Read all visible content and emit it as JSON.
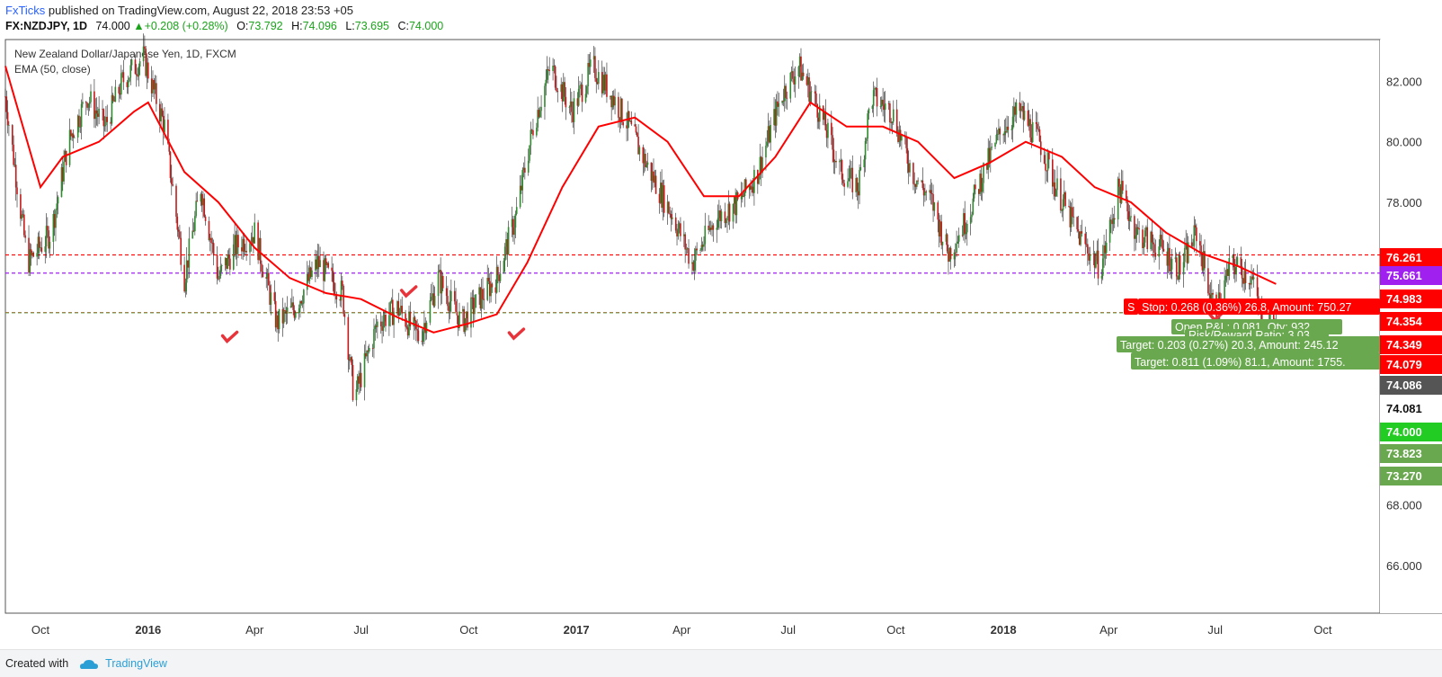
{
  "header": {
    "author": "FxTicks",
    "published": "published on TradingView.com, August 22, 2018 23:53 +05",
    "symbol": "FX:NZDJPY, 1D",
    "last": "74.000",
    "change": "+0.208 (+0.28%)",
    "open_label": "O:",
    "open": "73.792",
    "high_label": "H:",
    "high": "74.096",
    "low_label": "L:",
    "low": "73.695",
    "close_label": "C:",
    "close": "74.000"
  },
  "legend": {
    "instrument": "New Zealand Dollar/Japanese Yen, 1D, FXCM",
    "indicator": "EMA (50, close)"
  },
  "footer": {
    "created_with": "Created with",
    "brand": "TradingView"
  },
  "colors": {
    "up": "#2e8b2e",
    "down": "#c41a1a",
    "ema": "#ff0000",
    "purple": "#a020f0",
    "green_box": "#6aa84f",
    "red_box": "#ff0000"
  },
  "chart_data": {
    "type": "candlestick",
    "title": "New Zealand Dollar/Japanese Yen, 1D, FXCM",
    "xlabel": "",
    "ylabel": "",
    "y_ticks": [
      82.0,
      80.0,
      78.0,
      68.0,
      66.0
    ],
    "x_ticks": [
      {
        "label": "Oct",
        "date": "2015-10-01",
        "bold": false
      },
      {
        "label": "2016",
        "date": "2016-01-01",
        "bold": true
      },
      {
        "label": "Apr",
        "date": "2016-04-01",
        "bold": false
      },
      {
        "label": "Jul",
        "date": "2016-07-01",
        "bold": false
      },
      {
        "label": "Oct",
        "date": "2016-10-01",
        "bold": false
      },
      {
        "label": "2017",
        "date": "2017-01-01",
        "bold": true
      },
      {
        "label": "Apr",
        "date": "2017-04-01",
        "bold": false
      },
      {
        "label": "Jul",
        "date": "2017-07-01",
        "bold": false
      },
      {
        "label": "Oct",
        "date": "2017-10-01",
        "bold": false
      },
      {
        "label": "2018",
        "date": "2018-01-01",
        "bold": true
      },
      {
        "label": "Apr",
        "date": "2018-04-01",
        "bold": false
      },
      {
        "label": "Jul",
        "date": "2018-07-01",
        "bold": false
      },
      {
        "label": "Oct",
        "date": "2018-10-01",
        "bold": false
      }
    ],
    "price_series": [
      [
        "2015-09-01",
        81.5
      ],
      [
        "2015-09-20",
        76.0
      ],
      [
        "2015-10-10",
        77.0
      ],
      [
        "2015-10-25",
        80.0
      ],
      [
        "2015-11-10",
        81.5
      ],
      [
        "2015-11-25",
        80.5
      ],
      [
        "2015-12-10",
        82.0
      ],
      [
        "2015-12-28",
        82.8
      ],
      [
        "2016-01-15",
        80.5
      ],
      [
        "2016-02-01",
        75.5
      ],
      [
        "2016-02-15",
        78.5
      ],
      [
        "2016-03-01",
        75.5
      ],
      [
        "2016-03-15",
        76.5
      ],
      [
        "2016-04-01",
        77.0
      ],
      [
        "2016-04-20",
        74.0
      ],
      [
        "2016-05-05",
        74.5
      ],
      [
        "2016-05-25",
        76.0
      ],
      [
        "2016-06-15",
        75.0
      ],
      [
        "2016-06-25",
        71.5
      ],
      [
        "2016-07-15",
        74.0
      ],
      [
        "2016-08-01",
        74.5
      ],
      [
        "2016-08-20",
        73.5
      ],
      [
        "2016-09-05",
        75.5
      ],
      [
        "2016-09-25",
        74.0
      ],
      [
        "2016-10-10",
        74.8
      ],
      [
        "2016-10-25",
        75.5
      ],
      [
        "2016-11-10",
        77.5
      ],
      [
        "2016-11-25",
        80.5
      ],
      [
        "2016-12-10",
        82.5
      ],
      [
        "2016-12-28",
        81.0
      ],
      [
        "2017-01-15",
        82.5
      ],
      [
        "2017-02-01",
        81.5
      ],
      [
        "2017-02-15",
        80.5
      ],
      [
        "2017-03-05",
        79.0
      ],
      [
        "2017-03-25",
        77.5
      ],
      [
        "2017-04-10",
        76.0
      ],
      [
        "2017-05-01",
        77.5
      ],
      [
        "2017-05-20",
        78.0
      ],
      [
        "2017-06-05",
        79.0
      ],
      [
        "2017-06-25",
        81.5
      ],
      [
        "2017-07-10",
        82.5
      ],
      [
        "2017-07-28",
        81.0
      ],
      [
        "2017-08-15",
        79.0
      ],
      [
        "2017-08-30",
        78.5
      ],
      [
        "2017-09-10",
        81.5
      ],
      [
        "2017-09-28",
        81.0
      ],
      [
        "2017-10-15",
        79.0
      ],
      [
        "2017-11-01",
        78.0
      ],
      [
        "2017-11-15",
        76.3
      ],
      [
        "2017-12-01",
        77.5
      ],
      [
        "2017-12-15",
        79.0
      ],
      [
        "2018-01-01",
        80.5
      ],
      [
        "2018-01-15",
        81.0
      ],
      [
        "2018-02-01",
        80.0
      ],
      [
        "2018-02-15",
        78.5
      ],
      [
        "2018-03-05",
        77.0
      ],
      [
        "2018-03-25",
        75.8
      ],
      [
        "2018-04-10",
        78.5
      ],
      [
        "2018-04-25",
        77.0
      ],
      [
        "2018-05-15",
        76.5
      ],
      [
        "2018-06-01",
        75.8
      ],
      [
        "2018-06-15",
        77.0
      ],
      [
        "2018-07-01",
        74.3
      ],
      [
        "2018-07-15",
        76.0
      ],
      [
        "2018-08-01",
        75.5
      ],
      [
        "2018-08-12",
        73.8
      ],
      [
        "2018-08-22",
        74.0
      ]
    ],
    "ema_50": [
      [
        "2015-09-01",
        82.5
      ],
      [
        "2015-10-01",
        78.5
      ],
      [
        "2015-10-20",
        79.5
      ],
      [
        "2015-11-20",
        80.0
      ],
      [
        "2015-12-20",
        81.0
      ],
      [
        "2016-01-01",
        81.3
      ],
      [
        "2016-02-01",
        79.0
      ],
      [
        "2016-03-01",
        78.0
      ],
      [
        "2016-04-01",
        76.5
      ],
      [
        "2016-05-01",
        75.5
      ],
      [
        "2016-06-01",
        75.0
      ],
      [
        "2016-07-01",
        74.8
      ],
      [
        "2016-08-01",
        74.2
      ],
      [
        "2016-09-01",
        73.7
      ],
      [
        "2016-10-01",
        74.0
      ],
      [
        "2016-10-25",
        74.3
      ],
      [
        "2016-11-20",
        76.0
      ],
      [
        "2016-12-20",
        78.5
      ],
      [
        "2017-01-20",
        80.5
      ],
      [
        "2017-02-20",
        80.8
      ],
      [
        "2017-03-20",
        80.0
      ],
      [
        "2017-04-20",
        78.2
      ],
      [
        "2017-05-20",
        78.2
      ],
      [
        "2017-06-20",
        79.5
      ],
      [
        "2017-07-20",
        81.3
      ],
      [
        "2017-08-20",
        80.5
      ],
      [
        "2017-09-20",
        80.5
      ],
      [
        "2017-10-20",
        80.0
      ],
      [
        "2017-11-20",
        78.8
      ],
      [
        "2017-12-20",
        79.3
      ],
      [
        "2018-01-20",
        80.0
      ],
      [
        "2018-02-20",
        79.5
      ],
      [
        "2018-03-20",
        78.5
      ],
      [
        "2018-04-20",
        78.0
      ],
      [
        "2018-05-20",
        77.0
      ],
      [
        "2018-06-20",
        76.3
      ],
      [
        "2018-07-20",
        75.9
      ],
      [
        "2018-08-22",
        75.3
      ]
    ],
    "horizontal_lines": [
      {
        "value": 76.261,
        "color": "#ff0000",
        "style": "dashed"
      },
      {
        "value": 75.661,
        "color": "#a020f0",
        "style": "dashed"
      },
      {
        "value": 74.354,
        "color": "#ff0000",
        "style": "dashed"
      },
      {
        "value": 74.349,
        "color": "#6aa84f",
        "style": "dashed"
      }
    ],
    "price_labels": [
      {
        "value": "76.261",
        "color": "#ff0000"
      },
      {
        "value": "75.661",
        "color": "#a020f0"
      },
      {
        "value": "74.983",
        "color": "#ff0000"
      },
      {
        "value": "74.354",
        "color": "#ff0000"
      },
      {
        "value": "74.349",
        "color": "#ff0000"
      },
      {
        "value": "74.079",
        "color": "#ff0000"
      },
      {
        "value": "74.086",
        "color": "#555555"
      },
      {
        "value": "74.081",
        "color": "#ffffff"
      },
      {
        "value": "74.000",
        "color": "#22cc22"
      },
      {
        "value": "73.823",
        "color": "#6aa84f"
      },
      {
        "value": "73.270",
        "color": "#6aa84f"
      }
    ],
    "position_labels": [
      {
        "text": "S",
        "color": "#ff0000"
      },
      {
        "text": "Stop: 0.268 (0.36%) 26.8, Amount: 750.27",
        "color": "#ff0000"
      },
      {
        "text": "Open P&L: 0.081, Qty: 932",
        "color": "#6aa84f"
      },
      {
        "text": "Risk/Reward Ratio: 3.03",
        "color": "#6aa84f"
      },
      {
        "text": "Target: 0.203 (0.27%) 20.3, Amount: 245.12",
        "color": "#6aa84f"
      },
      {
        "text": "Target: 0.811 (1.09%) 81.1, Amount: 1755.",
        "color": "#6aa84f"
      }
    ]
  }
}
